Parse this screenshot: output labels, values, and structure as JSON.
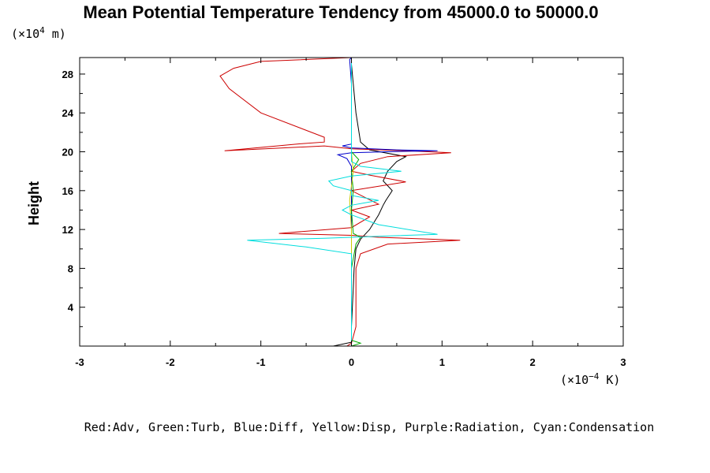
{
  "chart_data": {
    "type": "line",
    "title": "Mean Potential Temperature Tendency from 45000.0 to 50000.0",
    "ylabel": "Height",
    "y_unit_prefix": "(×10",
    "y_unit_exp": "4",
    "y_unit_suffix": " m)",
    "x_unit_prefix": "(×10",
    "x_unit_exp": "−4",
    "x_unit_suffix": " K)",
    "legend_text": "Red:Adv, Green:Turb, Blue:Diff, Yellow:Disp, Purple:Radiation, Cyan:Condensation",
    "xlim": [
      -3,
      3
    ],
    "ylim": [
      0,
      29.7
    ],
    "xticks": [
      -3,
      -2,
      -1,
      0,
      1,
      2,
      3
    ],
    "yticks": [
      4,
      8,
      12,
      16,
      20,
      24,
      28
    ],
    "grid": false,
    "series": [
      {
        "color": "#000000",
        "x": [
          -0.2,
          0.0,
          0.0,
          0.02,
          0.03,
          0.05,
          0.1,
          0.15,
          0.2,
          0.3,
          0.35,
          0.38,
          0.45,
          0.35,
          0.4,
          0.5,
          0.6,
          0.2,
          0.1,
          0.05,
          0.02,
          0.0,
          0.0
        ],
        "y": [
          0.0,
          0.4,
          2.0,
          6.0,
          8.0,
          10.0,
          11.0,
          11.5,
          12.0,
          13.5,
          14.5,
          15.0,
          16.0,
          17.0,
          18.0,
          19.0,
          19.5,
          20.2,
          21.0,
          24.0,
          27.0,
          29.0,
          29.7
        ]
      },
      {
        "color": "#cc0000",
        "x": [
          -0.05,
          0.0,
          0.05,
          0.05,
          0.1,
          0.4,
          1.2,
          0.3,
          0.0,
          -0.8,
          0.0,
          0.2,
          0.0,
          0.3,
          0.0,
          0.6,
          0.2,
          0.0,
          0.1,
          0.4,
          1.1,
          0.6,
          0.0,
          -0.3,
          -1.4,
          -0.6,
          -0.3,
          -0.3,
          -1.0,
          -1.35,
          -1.45,
          -1.3,
          -1.0,
          0.0
        ],
        "y": [
          0.0,
          0.3,
          2.0,
          8.0,
          9.5,
          10.5,
          10.9,
          11.2,
          11.4,
          11.6,
          12.2,
          13.3,
          14.0,
          14.6,
          16.0,
          16.9,
          17.6,
          18.0,
          18.8,
          19.5,
          19.9,
          20.1,
          20.3,
          20.6,
          20.1,
          20.8,
          21.0,
          21.5,
          24.0,
          26.5,
          27.8,
          28.6,
          29.3,
          29.7
        ]
      },
      {
        "color": "#0000cc",
        "x": [
          0.0,
          0.0,
          0.0,
          0.0,
          -0.05,
          -0.15,
          0.0,
          0.4,
          0.95,
          0.5,
          0.0,
          -0.1,
          0.0,
          0.0,
          0.0,
          -0.02,
          0.0
        ],
        "y": [
          0.0,
          5.0,
          12.0,
          18.5,
          19.3,
          19.7,
          19.9,
          20.0,
          20.1,
          20.2,
          20.4,
          20.6,
          20.8,
          23.0,
          27.0,
          29.5,
          29.7
        ]
      },
      {
        "color": "#00aa00",
        "x": [
          0.0,
          0.1,
          0.0,
          0.0,
          0.05,
          0.1,
          0.02,
          0.0,
          0.02,
          0.0,
          0.08,
          0.0,
          0.0
        ],
        "y": [
          0.0,
          0.3,
          0.6,
          8.0,
          10.5,
          11.2,
          11.6,
          14.0,
          16.0,
          18.0,
          19.2,
          20.0,
          29.7
        ]
      },
      {
        "color": "#cccc00",
        "x": [
          0.0,
          0.0,
          -0.02,
          0.02,
          0.0,
          0.0
        ],
        "y": [
          0.0,
          12.0,
          15.0,
          18.0,
          20.0,
          29.7
        ]
      },
      {
        "color": "#00dddd",
        "x": [
          0.0,
          0.0,
          0.0,
          -0.5,
          -1.15,
          -0.3,
          0.0,
          0.3,
          0.95,
          0.3,
          0.0,
          -0.1,
          0.0,
          0.3,
          0.0,
          0.0,
          -0.2,
          -0.25,
          0.0,
          0.55,
          0.1,
          0.0,
          0.0,
          0.0
        ],
        "y": [
          0.0,
          5.0,
          9.5,
          10.2,
          10.9,
          11.1,
          11.2,
          11.3,
          11.5,
          12.5,
          13.5,
          14.0,
          14.5,
          15.0,
          15.5,
          16.0,
          16.5,
          17.0,
          17.5,
          18.0,
          18.5,
          19.0,
          25.0,
          29.7
        ]
      }
    ]
  }
}
